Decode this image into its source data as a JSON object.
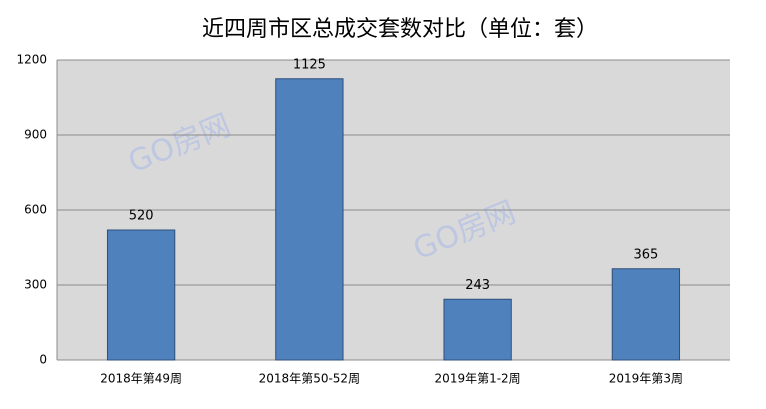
{
  "chart_data": {
    "type": "bar",
    "title": "近四周市区总成交套数对比（单位：套）",
    "categories": [
      "2018年第49周",
      "2018年第50-52周",
      "2019年第1-2周",
      "2019年第3周"
    ],
    "values": [
      520,
      1125,
      243,
      365
    ],
    "color": "#4f81bd",
    "ylim": [
      0,
      1200
    ],
    "yticks": [
      0,
      300,
      600,
      900,
      1200
    ],
    "grid": true,
    "watermark": "GO房网"
  }
}
